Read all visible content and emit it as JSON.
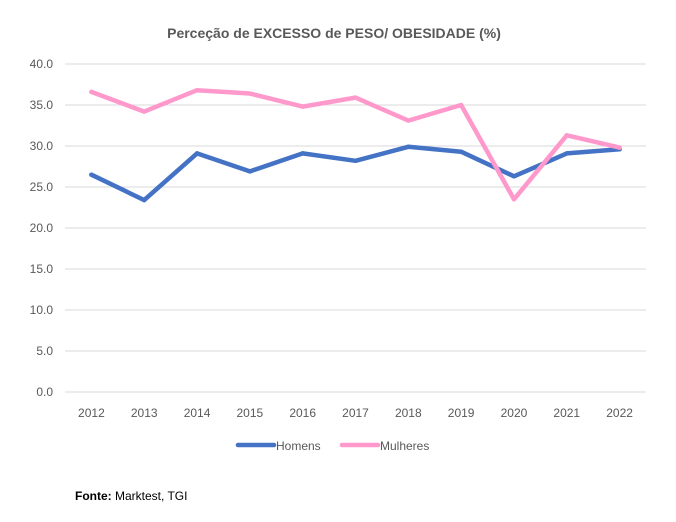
{
  "chart_data": {
    "type": "line",
    "title": "Perceção de EXCESSO de PESO/ OBESIDADE (%)",
    "xlabel": "",
    "ylabel": "",
    "ylim": [
      0,
      40
    ],
    "yticks": [
      "0.0",
      "5.0",
      "10.0",
      "15.0",
      "20.0",
      "25.0",
      "30.0",
      "35.0",
      "40.0"
    ],
    "categories": [
      "2012",
      "2013",
      "2014",
      "2015",
      "2016",
      "2017",
      "2018",
      "2019",
      "2020",
      "2021",
      "2022"
    ],
    "grid": true,
    "legend_position": "bottom",
    "series": [
      {
        "name": "Homens",
        "color": "#4472C4",
        "values": [
          26.5,
          23.4,
          29.1,
          26.9,
          29.1,
          28.2,
          29.9,
          29.3,
          26.3,
          29.1,
          29.6
        ]
      },
      {
        "name": "Mulheres",
        "color": "#FF99CC",
        "values": [
          36.6,
          34.2,
          36.8,
          36.4,
          34.8,
          35.9,
          33.1,
          35.0,
          23.5,
          31.3,
          29.8
        ]
      }
    ]
  },
  "source": {
    "label": "Fonte:",
    "text": " Marktest, TGI"
  }
}
